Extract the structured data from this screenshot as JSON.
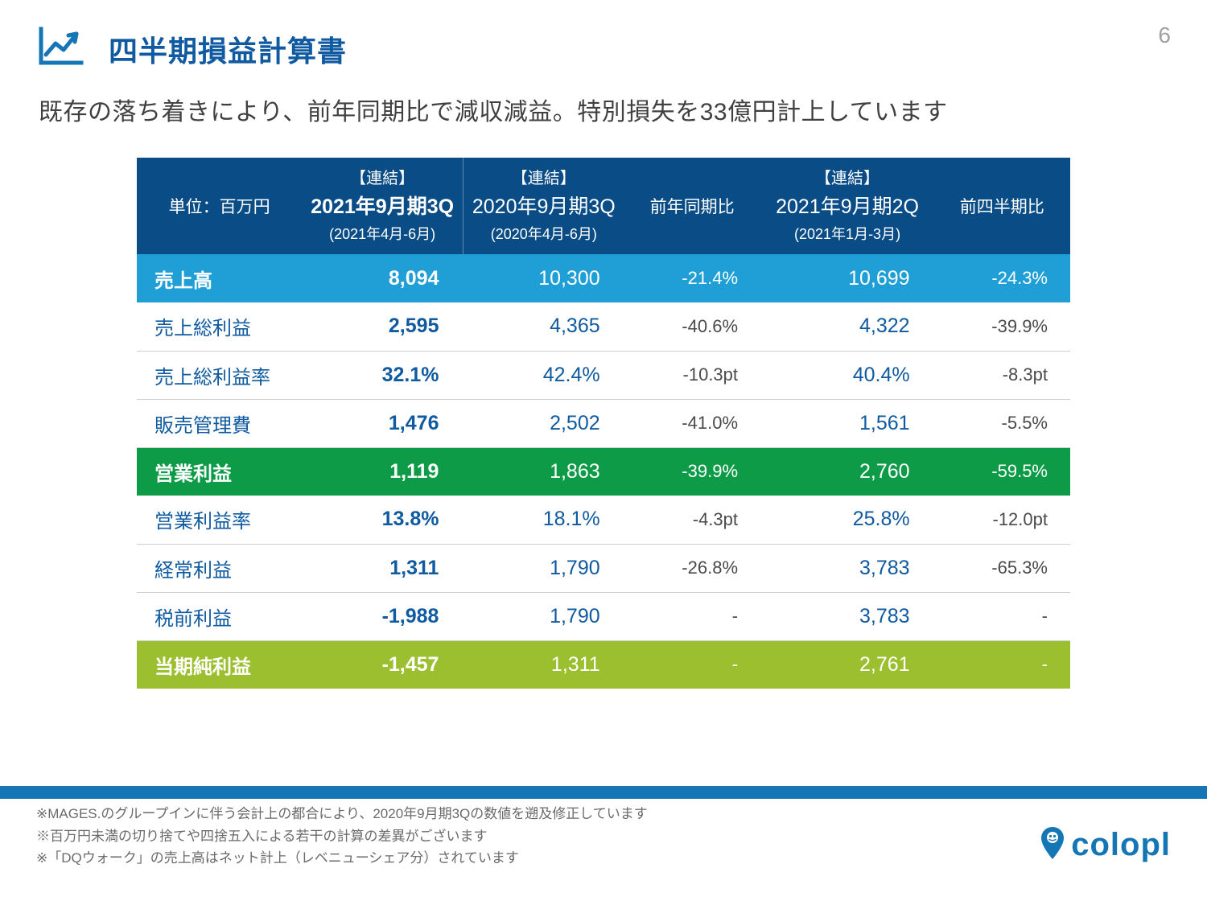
{
  "page_number": "6",
  "title": "四半期損益計算書",
  "subtitle": "既存の落ち着きにより、前年同期比で減収減益。特別損失を33億円計上しています",
  "colors": {
    "header_bg": "#0a4d86",
    "row_blue": "#1f9fd6",
    "row_green": "#0d9b48",
    "row_lime": "#9cbf2f",
    "accent": "#0f5aa0",
    "footer_bar": "#1576b6",
    "text_grey": "#6a6a6a",
    "border": "#cfcfcf"
  },
  "table": {
    "unit_label": "単位：百万円",
    "columns": [
      {
        "tag": "【連結】",
        "main": "2021年9月期3Q",
        "sub": "(2021年4月-6月)",
        "bold": true
      },
      {
        "tag": "【連結】",
        "main": "2020年9月期3Q",
        "sub": "(2020年4月-6月)",
        "bold": false
      },
      {
        "cmp_label": "前年同期比"
      },
      {
        "tag": "【連結】",
        "main": "2021年9月期2Q",
        "sub": "(2021年1月-3月)",
        "bold": false
      },
      {
        "cmp_label": "前四半期比"
      }
    ],
    "rows": [
      {
        "label": "売上高",
        "style": "blue",
        "v1": "8,094",
        "v2": "10,300",
        "c1": "-21.4%",
        "v3": "10,699",
        "c2": "-24.3%"
      },
      {
        "label": "売上総利益",
        "style": "plain",
        "v1": "2,595",
        "v2": "4,365",
        "c1": "-40.6%",
        "v3": "4,322",
        "c2": "-39.9%"
      },
      {
        "label": "売上総利益率",
        "style": "plain",
        "v1": "32.1%",
        "v2": "42.4%",
        "c1": "-10.3pt",
        "v3": "40.4%",
        "c2": "-8.3pt"
      },
      {
        "label": "販売管理費",
        "style": "plain",
        "v1": "1,476",
        "v2": "2,502",
        "c1": "-41.0%",
        "v3": "1,561",
        "c2": "-5.5%"
      },
      {
        "label": "営業利益",
        "style": "green",
        "v1": "1,119",
        "v2": "1,863",
        "c1": "-39.9%",
        "v3": "2,760",
        "c2": "-59.5%"
      },
      {
        "label": "営業利益率",
        "style": "plain",
        "v1": "13.8%",
        "v2": "18.1%",
        "c1": "-4.3pt",
        "v3": "25.8%",
        "c2": "-12.0pt"
      },
      {
        "label": "経常利益",
        "style": "plain",
        "v1": "1,311",
        "v2": "1,790",
        "c1": "-26.8%",
        "v3": "3,783",
        "c2": "-65.3%"
      },
      {
        "label": "税前利益",
        "style": "plain",
        "v1": "-1,988",
        "v2": "1,790",
        "c1": "-",
        "v3": "3,783",
        "c2": "-"
      },
      {
        "label": "当期純利益",
        "style": "lime",
        "v1": "-1,457",
        "v2": "1,311",
        "c1": "-",
        "v3": "2,761",
        "c2": "-"
      }
    ]
  },
  "footnotes": [
    "※MAGES.のグループインに伴う会計上の都合により、2020年9月期3Qの数値を遡及修正しています",
    "※百万円未満の切り捨てや四捨五入による若干の計算の差異がございます",
    "※「DQウォーク」の売上高はネット計上（レベニューシェア分）されています"
  ],
  "logo_text": "colopl"
}
